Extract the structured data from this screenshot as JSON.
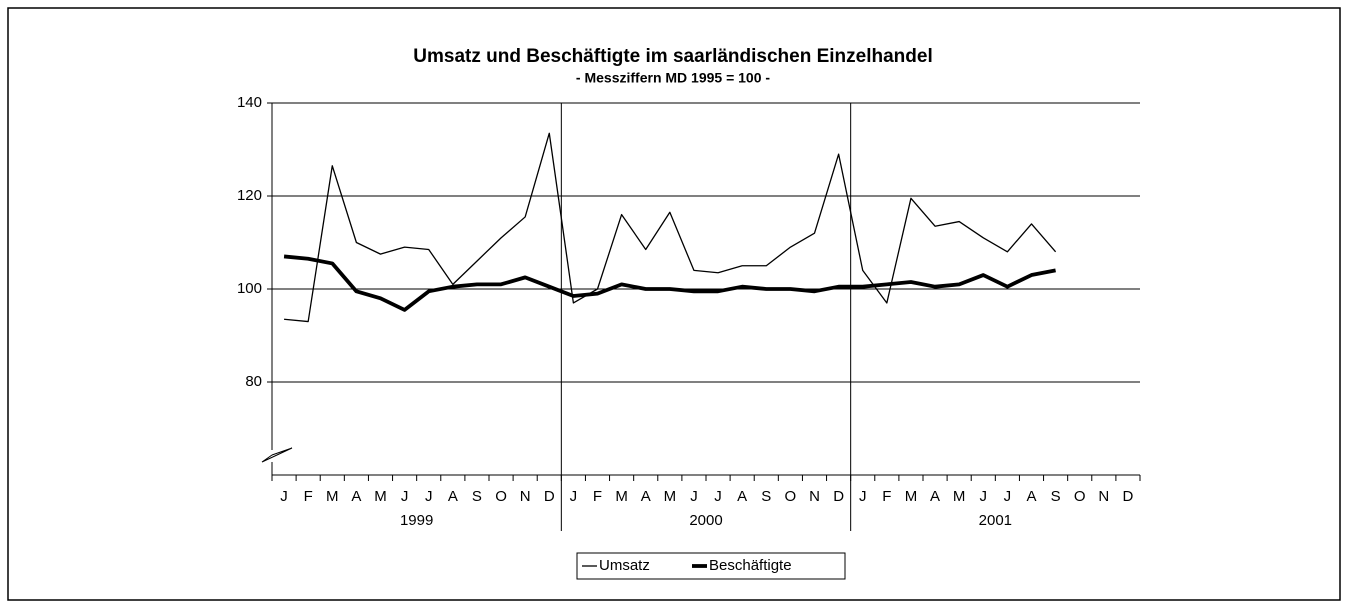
{
  "chart_data": {
    "type": "line",
    "title": "Umsatz und Beschäftigte im saarländischen Einzelhandel",
    "subtitle": "- Messziffern MD 1995 = 100 -",
    "categories": [
      "J",
      "F",
      "M",
      "A",
      "M",
      "J",
      "J",
      "A",
      "S",
      "O",
      "N",
      "D",
      "J",
      "F",
      "M",
      "A",
      "M",
      "J",
      "J",
      "A",
      "S",
      "O",
      "N",
      "D",
      "J",
      "F",
      "M",
      "A",
      "M",
      "J",
      "J",
      "A",
      "S",
      "O",
      "N",
      "D"
    ],
    "groups": [
      "1999",
      "2000",
      "2001"
    ],
    "series": [
      {
        "name": "Umsatz",
        "color": "#000000",
        "values": [
          93.5,
          93,
          126.5,
          110,
          107.5,
          109,
          108.5,
          101,
          106,
          111,
          115.5,
          133.5,
          97,
          100,
          116,
          108.5,
          116.5,
          104,
          103.5,
          105,
          105,
          109,
          112,
          129,
          104,
          97,
          119.5,
          113.5,
          114.5,
          111,
          108,
          114,
          108,
          null,
          null,
          null
        ]
      },
      {
        "name": "Beschäftigte",
        "color": "#000000",
        "values": [
          107,
          106.5,
          105.5,
          99.5,
          98,
          95.5,
          99.5,
          100.5,
          101,
          101,
          102.5,
          100.5,
          98.5,
          99,
          101,
          100,
          100,
          99.5,
          99.5,
          100.5,
          100,
          100,
          99.5,
          100.5,
          100.5,
          101,
          101.5,
          100.5,
          101,
          103,
          100.5,
          103,
          104,
          null,
          null,
          null
        ]
      }
    ],
    "ylim": [
      60,
      140
    ],
    "yticks": [
      80,
      100,
      120,
      140
    ],
    "grid": true
  }
}
